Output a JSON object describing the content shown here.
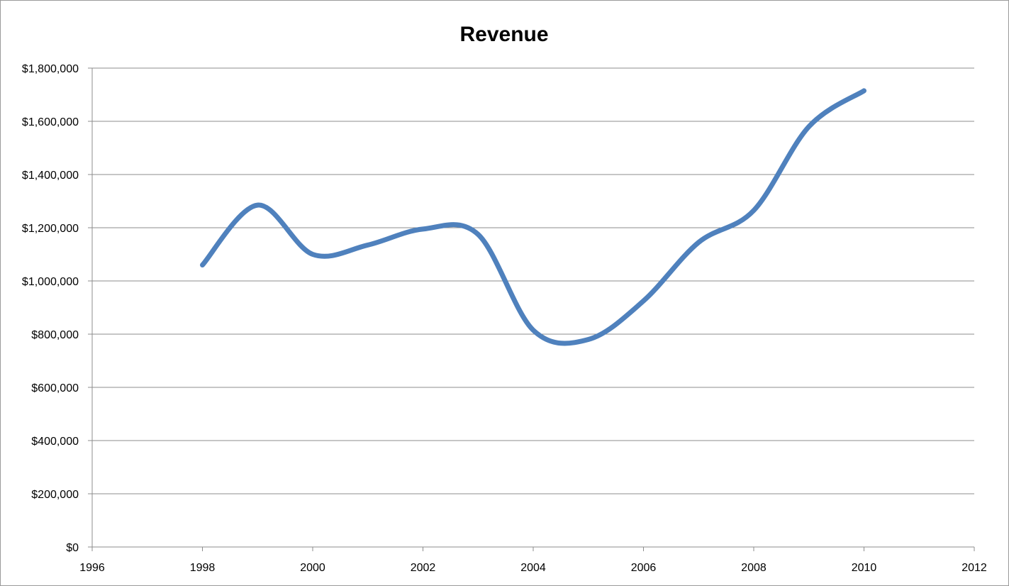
{
  "chart_data": {
    "type": "line",
    "title": "Revenue",
    "xlabel": "",
    "ylabel": "",
    "xlim": [
      1996,
      2012
    ],
    "ylim": [
      0,
      1800000
    ],
    "x_ticks": [
      1996,
      1998,
      2000,
      2002,
      2004,
      2006,
      2008,
      2010,
      2012
    ],
    "x_tick_labels": [
      "1996",
      "1998",
      "2000",
      "2002",
      "2004",
      "2006",
      "2008",
      "2010",
      "2012"
    ],
    "y_ticks": [
      0,
      200000,
      400000,
      600000,
      800000,
      1000000,
      1200000,
      1400000,
      1600000,
      1800000
    ],
    "y_tick_labels": [
      "$0",
      "$200,000",
      "$400,000",
      "$600,000",
      "$800,000",
      "$1,000,000",
      "$1,200,000",
      "$1,400,000",
      "$1,600,000",
      "$1,800,000"
    ],
    "grid": true,
    "legend": "none",
    "smooth": true,
    "series": [
      {
        "color": "#4f81bd",
        "x": [
          1998,
          1999,
          2000,
          2001,
          2002,
          2003,
          2004,
          2005,
          2006,
          2007,
          2008,
          2009,
          2010
        ],
        "values": [
          1060000,
          1285000,
          1100000,
          1135000,
          1195000,
          1175000,
          815000,
          780000,
          925000,
          1145000,
          1265000,
          1580000,
          1715000
        ]
      }
    ]
  }
}
